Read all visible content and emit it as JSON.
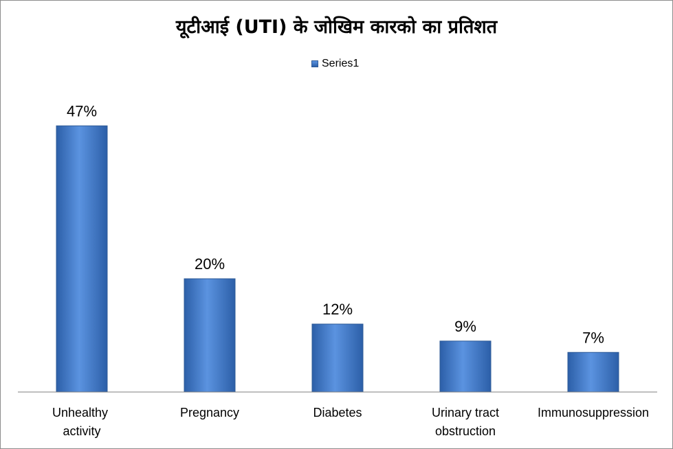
{
  "chart_data": {
    "type": "bar",
    "title": "यूटीआई (UTI) के जोखिम कारको का प्रतिशत",
    "categories": [
      "Unhealthy  activity",
      "Pregnancy",
      "Diabetes",
      "Urinary tract obstruction",
      "Immunosuppression"
    ],
    "series": [
      {
        "name": "Series1",
        "values": [
          47,
          20,
          12,
          9,
          7
        ],
        "labels": [
          "47%",
          "20%",
          "12%",
          "9%",
          "7%"
        ]
      }
    ],
    "ylim": [
      0,
      50
    ],
    "grid": false,
    "legend_position": "top",
    "colors": {
      "bar_light": "#5b93e0",
      "bar_dark": "#2c5fa8",
      "bar_edge": "#2f5b97",
      "axis": "#7f7f7f"
    }
  }
}
